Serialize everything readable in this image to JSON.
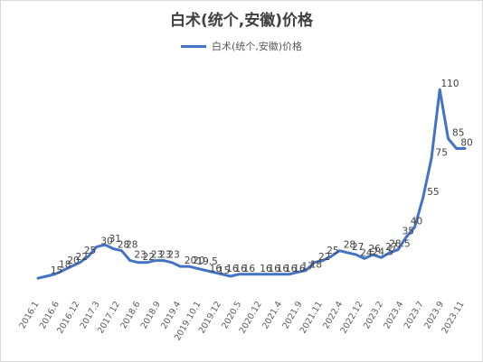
{
  "chart_data": {
    "type": "line",
    "title": "白术(统个,安徽)价格",
    "legend_position": "top-center",
    "grid": false,
    "series": [
      {
        "name": "白术(统个,安徽)价格",
        "color": "#4472c4",
        "values": [
          14,
          15,
          16,
          18,
          20,
          22,
          25,
          30,
          31,
          29,
          28,
          23,
          22,
          22,
          23,
          23,
          22,
          20,
          20,
          19,
          18,
          17,
          16,
          15,
          16,
          16,
          16,
          16,
          16,
          16,
          16,
          17,
          18,
          22,
          23,
          25,
          28,
          27,
          26,
          24,
          26,
          24.5,
          27,
          28.5,
          35,
          40,
          55,
          75,
          110,
          85,
          80,
          80
        ]
      }
    ],
    "x_tick_labels": [
      "2016.1",
      "2016.6",
      "2016.12",
      "2017.3",
      "2017.12",
      "2018.6",
      "2018.9",
      "2019.4",
      "2019.10.1",
      "2019.12",
      "2020.5",
      "2020.12",
      "2021.4",
      "2021.9",
      "2021.11",
      "2022.4",
      "2022.12",
      "2023.2",
      "2023.4",
      "2023.7",
      "2023.9",
      "2023.11"
    ],
    "data_labels": [
      "15",
      "18",
      "20",
      "22",
      "25",
      "30",
      "31",
      "28",
      "28",
      "23",
      "22",
      "23",
      "23",
      "23",
      "20",
      "20",
      "19.5",
      "16",
      "15",
      "16",
      "16",
      "16",
      "16",
      "16",
      "16",
      "16",
      "16",
      "17",
      "18",
      "22",
      "25",
      "28",
      "27",
      "24",
      "26",
      "24.5",
      "27",
      "28.5",
      "35",
      "40",
      "55",
      "75",
      "110",
      "85",
      "80"
    ],
    "ylim": [
      0,
      120
    ]
  }
}
